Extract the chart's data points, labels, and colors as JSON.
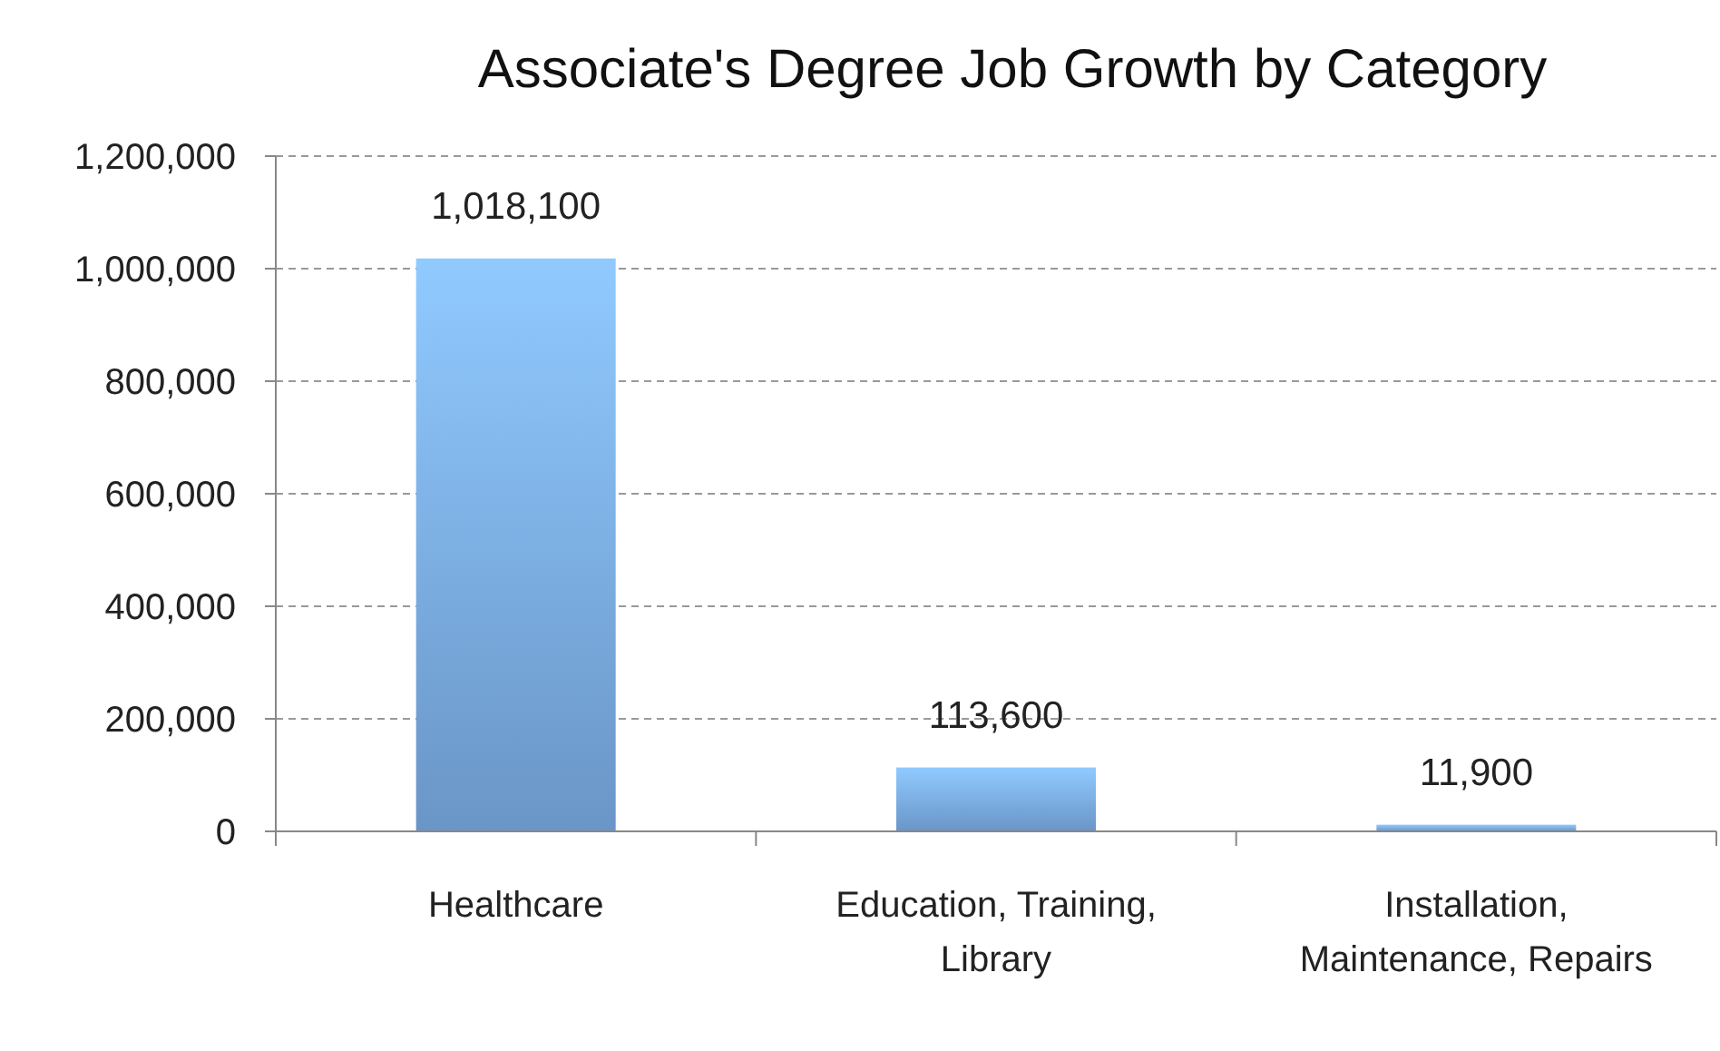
{
  "chart_data": {
    "type": "bar",
    "title": "Associate's Degree Job Growth by Category",
    "categories": [
      "Healthcare",
      "Education, Training, Library",
      "Installation, Maintenance, Repairs"
    ],
    "values": [
      1018100,
      113600,
      11900
    ],
    "color": "#7fb2ee",
    "ylim": [
      0,
      1200000
    ],
    "yticks": [
      {
        "value": 0,
        "label": "0"
      },
      {
        "value": 200000,
        "label": "200,000"
      },
      {
        "value": 400000,
        "label": "400,000"
      },
      {
        "value": 600000,
        "label": "600,000"
      },
      {
        "value": 800000,
        "label": "800,000"
      },
      {
        "value": 1000000,
        "label": "1,000,000"
      },
      {
        "value": 1200000,
        "label": "1,200,000"
      }
    ],
    "grid": "y",
    "value_labels": [
      "1,018,100",
      "113,600",
      "11,900"
    ]
  }
}
